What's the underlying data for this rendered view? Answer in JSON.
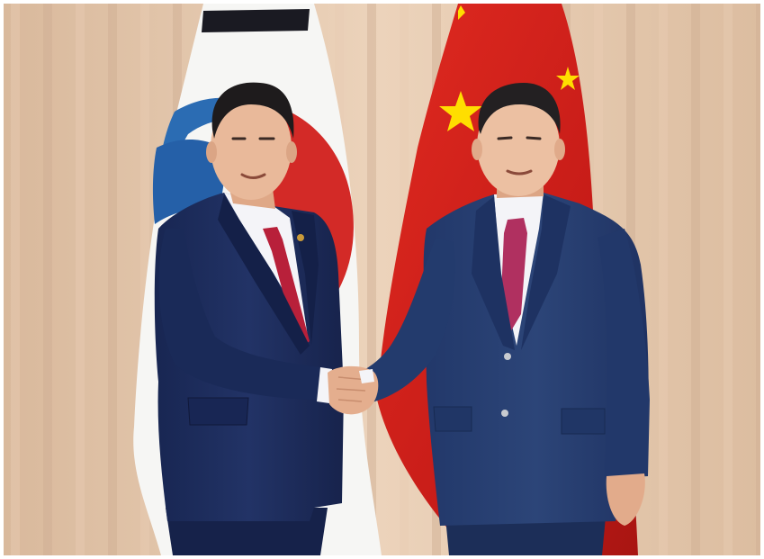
{
  "scene": {
    "subject": "photograph",
    "colors": {
      "curtain_light": "#e8cdb4",
      "curtain_dark": "#cfae92",
      "flag_red": "#d9251d",
      "flag_yellow": "#ffde00",
      "flag_blue": "#2b6cb3",
      "flag_white": "#f7f7f5",
      "suit_navy": "#1d2d5e",
      "suit_navy_right": "#263e6e",
      "shirt": "#f4f4f8",
      "tie": "#b8203a",
      "tie_right": "#b03060",
      "skin": "#e9b99a",
      "hair": "#1e1b1c"
    }
  }
}
